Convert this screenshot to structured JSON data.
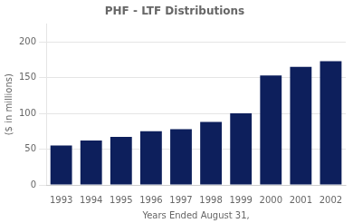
{
  "chart_data": {
    "type": "bar",
    "title": "PHF - LTF Distributions",
    "categories": [
      "1993",
      "1994",
      "1995",
      "1996",
      "1997",
      "1998",
      "1999",
      "2000",
      "2001",
      "2002"
    ],
    "values": [
      55,
      62,
      67,
      75,
      78,
      88,
      100,
      153,
      165,
      173
    ],
    "color": "#0d1f5c",
    "ylabel": "($ in millions)",
    "xlabel": "Years Ended August 31,",
    "ylim": [
      0,
      225
    ],
    "yticks": [
      0,
      50,
      100,
      150,
      200
    ],
    "grid": true
  }
}
